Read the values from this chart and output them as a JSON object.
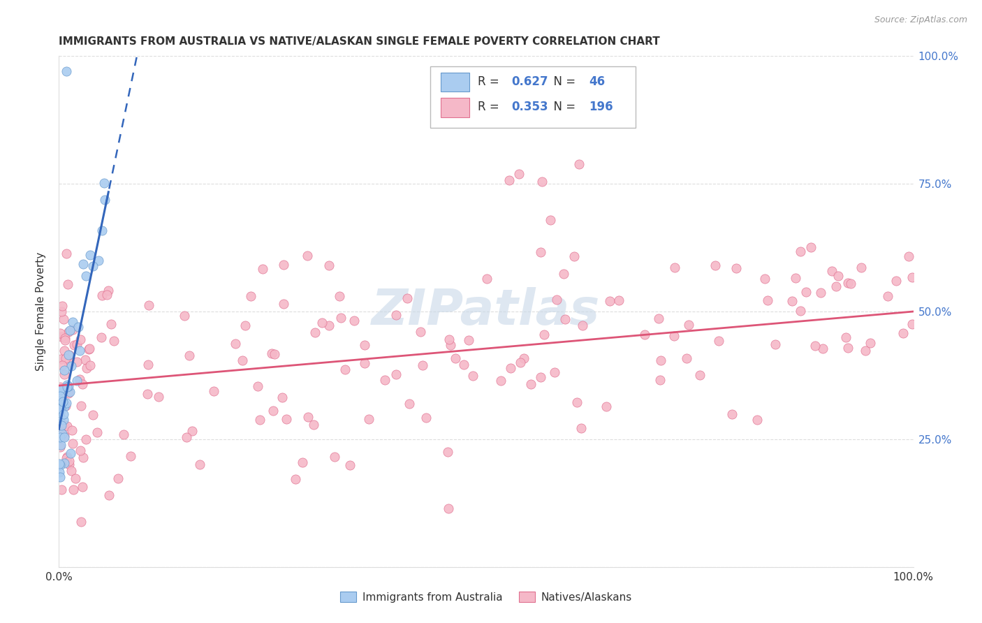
{
  "title": "IMMIGRANTS FROM AUSTRALIA VS NATIVE/ALASKAN SINGLE FEMALE POVERTY CORRELATION CHART",
  "source": "Source: ZipAtlas.com",
  "ylabel": "Single Female Poverty",
  "blue_R": 0.627,
  "blue_N": 46,
  "pink_R": 0.353,
  "pink_N": 196,
  "blue_fill": "#aaccf0",
  "blue_edge": "#6699cc",
  "pink_fill": "#f5b8c8",
  "pink_edge": "#e07090",
  "blue_line_color": "#3366bb",
  "pink_line_color": "#dd5577",
  "watermark_color": "#c8d8e8",
  "axis_label_color": "#4477cc",
  "text_color": "#333333",
  "grid_color": "#dddddd",
  "source_color": "#999999"
}
